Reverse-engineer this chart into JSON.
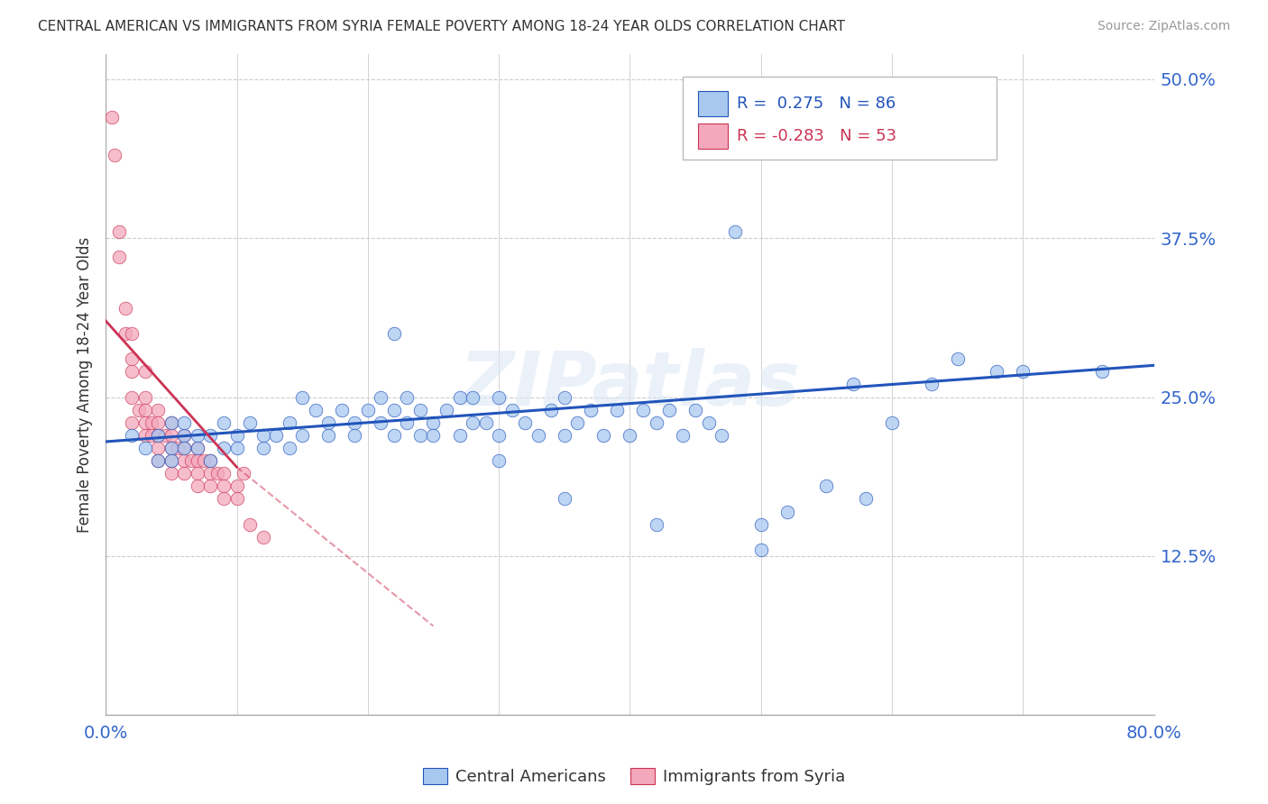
{
  "title": "CENTRAL AMERICAN VS IMMIGRANTS FROM SYRIA FEMALE POVERTY AMONG 18-24 YEAR OLDS CORRELATION CHART",
  "source": "Source: ZipAtlas.com",
  "ylabel": "Female Poverty Among 18-24 Year Olds",
  "xlim": [
    0.0,
    0.8
  ],
  "ylim": [
    0.0,
    0.52
  ],
  "xticks": [
    0.0,
    0.1,
    0.2,
    0.3,
    0.4,
    0.5,
    0.6,
    0.7,
    0.8
  ],
  "ytick_positions": [
    0.125,
    0.25,
    0.375,
    0.5
  ],
  "ytick_labels": [
    "12.5%",
    "25.0%",
    "37.5%",
    "50.0%"
  ],
  "blue_R": 0.275,
  "blue_N": 86,
  "pink_R": -0.283,
  "pink_N": 53,
  "blue_color": "#a8c8f0",
  "pink_color": "#f4a8bc",
  "blue_line_color": "#2255bb",
  "pink_line_color": "#cc3355",
  "background_color": "#ffffff",
  "watermark_text": "ZIPatlas",
  "blue_scatter_x": [
    0.02,
    0.03,
    0.04,
    0.04,
    0.05,
    0.05,
    0.05,
    0.06,
    0.06,
    0.06,
    0.07,
    0.07,
    0.08,
    0.08,
    0.09,
    0.09,
    0.1,
    0.1,
    0.11,
    0.12,
    0.12,
    0.13,
    0.14,
    0.14,
    0.15,
    0.15,
    0.16,
    0.17,
    0.17,
    0.18,
    0.19,
    0.19,
    0.2,
    0.21,
    0.21,
    0.22,
    0.22,
    0.23,
    0.23,
    0.24,
    0.24,
    0.25,
    0.25,
    0.26,
    0.27,
    0.27,
    0.28,
    0.28,
    0.29,
    0.3,
    0.3,
    0.31,
    0.32,
    0.33,
    0.34,
    0.35,
    0.35,
    0.36,
    0.37,
    0.38,
    0.39,
    0.4,
    0.41,
    0.42,
    0.43,
    0.44,
    0.45,
    0.46,
    0.47,
    0.48,
    0.5,
    0.52,
    0.55,
    0.58,
    0.6,
    0.63,
    0.65,
    0.68,
    0.7,
    0.76,
    0.22,
    0.3,
    0.35,
    0.42,
    0.5,
    0.57
  ],
  "blue_scatter_y": [
    0.22,
    0.21,
    0.22,
    0.2,
    0.23,
    0.21,
    0.2,
    0.22,
    0.21,
    0.23,
    0.21,
    0.22,
    0.2,
    0.22,
    0.21,
    0.23,
    0.22,
    0.21,
    0.23,
    0.21,
    0.22,
    0.22,
    0.23,
    0.21,
    0.25,
    0.22,
    0.24,
    0.23,
    0.22,
    0.24,
    0.23,
    0.22,
    0.24,
    0.23,
    0.25,
    0.22,
    0.24,
    0.23,
    0.25,
    0.22,
    0.24,
    0.23,
    0.22,
    0.24,
    0.25,
    0.22,
    0.23,
    0.25,
    0.23,
    0.25,
    0.22,
    0.24,
    0.23,
    0.22,
    0.24,
    0.22,
    0.25,
    0.23,
    0.24,
    0.22,
    0.24,
    0.22,
    0.24,
    0.23,
    0.24,
    0.22,
    0.24,
    0.23,
    0.22,
    0.38,
    0.15,
    0.16,
    0.18,
    0.17,
    0.23,
    0.26,
    0.28,
    0.27,
    0.27,
    0.27,
    0.3,
    0.2,
    0.17,
    0.15,
    0.13,
    0.26
  ],
  "pink_scatter_x": [
    0.005,
    0.007,
    0.01,
    0.01,
    0.015,
    0.015,
    0.02,
    0.02,
    0.02,
    0.02,
    0.02,
    0.025,
    0.03,
    0.03,
    0.03,
    0.03,
    0.03,
    0.035,
    0.035,
    0.04,
    0.04,
    0.04,
    0.04,
    0.04,
    0.045,
    0.05,
    0.05,
    0.05,
    0.05,
    0.05,
    0.055,
    0.06,
    0.06,
    0.06,
    0.06,
    0.065,
    0.07,
    0.07,
    0.07,
    0.07,
    0.075,
    0.08,
    0.08,
    0.08,
    0.085,
    0.09,
    0.09,
    0.09,
    0.1,
    0.1,
    0.105,
    0.11,
    0.12
  ],
  "pink_scatter_y": [
    0.47,
    0.44,
    0.38,
    0.36,
    0.32,
    0.3,
    0.3,
    0.28,
    0.27,
    0.25,
    0.23,
    0.24,
    0.27,
    0.25,
    0.24,
    0.23,
    0.22,
    0.23,
    0.22,
    0.24,
    0.23,
    0.22,
    0.21,
    0.2,
    0.22,
    0.23,
    0.22,
    0.21,
    0.2,
    0.19,
    0.21,
    0.22,
    0.21,
    0.2,
    0.19,
    0.2,
    0.21,
    0.2,
    0.19,
    0.18,
    0.2,
    0.2,
    0.19,
    0.18,
    0.19,
    0.19,
    0.18,
    0.17,
    0.18,
    0.17,
    0.19,
    0.15,
    0.14
  ],
  "pink_line_solid_end": 0.1,
  "pink_line_dash_end": 0.25
}
